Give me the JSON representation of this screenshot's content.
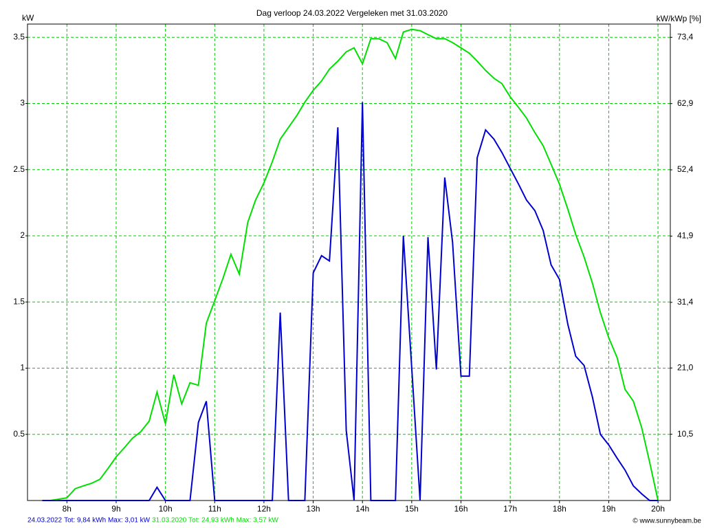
{
  "chart_data": {
    "type": "line",
    "title": "Dag  verloop 24.03.2022   Vergeleken met 31.03.2020",
    "y_label": "kW",
    "y2_label": "kW/kWp [%]",
    "copyright": "© www.sunnybeam.be",
    "x": [
      7.5,
      7.67,
      7.83,
      8,
      8.17,
      8.33,
      8.5,
      8.67,
      8.83,
      9,
      9.17,
      9.33,
      9.5,
      9.67,
      9.83,
      10,
      10.17,
      10.33,
      10.5,
      10.67,
      10.83,
      11,
      11.17,
      11.33,
      11.5,
      11.67,
      11.83,
      12,
      12.17,
      12.33,
      12.5,
      12.67,
      12.83,
      13,
      13.17,
      13.33,
      13.5,
      13.67,
      13.83,
      14,
      14.17,
      14.33,
      14.5,
      14.67,
      14.83,
      15,
      15.17,
      15.33,
      15.5,
      15.67,
      15.83,
      16,
      16.17,
      16.33,
      16.5,
      16.67,
      16.83,
      17,
      17.17,
      17.33,
      17.5,
      17.67,
      17.83,
      18,
      18.17,
      18.33,
      18.5,
      18.67,
      18.83,
      19,
      19.17,
      19.33,
      19.5,
      19.67,
      19.83,
      20
    ],
    "series": [
      {
        "name": "24.03.2022",
        "summary": "Tot: 9,84 kWh Max: 3,01 kW",
        "color": "#0000cc",
        "values": [
          0,
          0,
          0,
          0,
          0,
          0,
          0,
          0,
          0,
          0,
          0,
          0,
          0,
          0,
          0.1,
          0,
          0,
          0,
          0,
          0.59,
          0.75,
          0,
          0,
          0,
          0,
          0,
          0,
          0,
          0,
          1.42,
          0,
          0,
          0,
          1.72,
          1.85,
          1.81,
          2.82,
          0.53,
          0,
          3.01,
          0,
          0,
          0,
          0,
          2.0,
          1.0,
          0,
          1.99,
          0.99,
          2.44,
          1.95,
          0.94,
          0.94,
          2.59,
          2.8,
          2.73,
          2.63,
          2.51,
          2.39,
          2.27,
          2.19,
          2.04,
          1.78,
          1.67,
          1.33,
          1.09,
          1.02,
          0.78,
          0.5,
          0.42,
          0.32,
          0.23,
          0.11,
          0.05,
          0,
          0
        ]
      },
      {
        "name": "31.03.2020",
        "summary": "Tot: 24,93 kWh Max: 3,57 kW",
        "color": "#00e000",
        "values": [
          0,
          0,
          0.01,
          0.02,
          0.09,
          0.11,
          0.13,
          0.16,
          0.24,
          0.33,
          0.4,
          0.47,
          0.52,
          0.6,
          0.82,
          0.58,
          0.95,
          0.73,
          0.89,
          0.87,
          1.34,
          1.51,
          1.68,
          1.86,
          1.71,
          2.1,
          2.27,
          2.4,
          2.56,
          2.73,
          2.82,
          2.91,
          3.01,
          3.1,
          3.17,
          3.26,
          3.32,
          3.39,
          3.42,
          3.3,
          3.49,
          3.49,
          3.46,
          3.34,
          3.54,
          3.56,
          3.55,
          3.52,
          3.49,
          3.49,
          3.46,
          3.42,
          3.38,
          3.32,
          3.25,
          3.19,
          3.15,
          3.05,
          2.97,
          2.89,
          2.78,
          2.68,
          2.54,
          2.39,
          2.2,
          2.01,
          1.84,
          1.64,
          1.42,
          1.23,
          1.08,
          0.84,
          0.75,
          0.55,
          0.29,
          0
        ]
      }
    ],
    "xlim": [
      7.2,
      20.25
    ],
    "xticks": [
      {
        "value": 8,
        "label": "8h"
      },
      {
        "value": 9,
        "label": "9h"
      },
      {
        "value": 10,
        "label": "10h"
      },
      {
        "value": 11,
        "label": "11h"
      },
      {
        "value": 12,
        "label": "12h"
      },
      {
        "value": 13,
        "label": "13h"
      },
      {
        "value": 14,
        "label": "14h"
      },
      {
        "value": 15,
        "label": "15h"
      },
      {
        "value": 16,
        "label": "16h"
      },
      {
        "value": 17,
        "label": "17h"
      },
      {
        "value": 18,
        "label": "18h"
      },
      {
        "value": 19,
        "label": "19h"
      },
      {
        "value": 20,
        "label": "20h"
      }
    ],
    "ylim": [
      0,
      3.6
    ],
    "yticks": [
      0.5,
      1,
      1.5,
      2,
      2.5,
      3,
      3.5
    ],
    "y2lim": [
      0,
      75.5
    ],
    "y2ticks": [
      {
        "value": 10.5,
        "label": "10,5"
      },
      {
        "value": 21.0,
        "label": "21,0"
      },
      {
        "value": 31.4,
        "label": "31,4"
      },
      {
        "value": 41.9,
        "label": "41,9"
      },
      {
        "value": 52.4,
        "label": "52,4"
      },
      {
        "value": 62.9,
        "label": "62,9"
      },
      {
        "value": 73.4,
        "label": "73,4"
      }
    ],
    "grid": true,
    "grid_color": "#00cc00"
  }
}
